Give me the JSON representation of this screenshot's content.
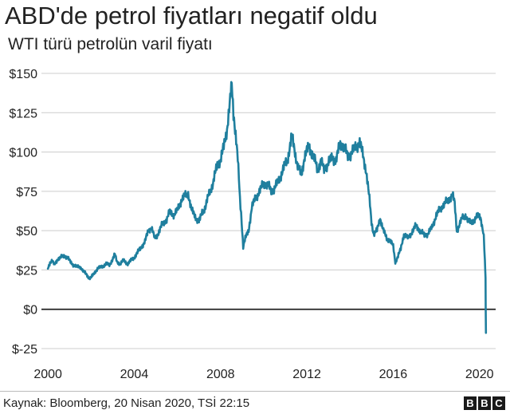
{
  "header": {
    "title": "ABD'de petrol fiyatları negatif oldu",
    "subtitle": "WTI türü petrolün varil fiyatı"
  },
  "footer": {
    "source": "Kaynak: Bloomberg, 20 Nisan 2020, TSİ 22:15",
    "logo": [
      "B",
      "B",
      "C"
    ]
  },
  "colors": {
    "line": "#1f7f9e",
    "zero_line": "#222222",
    "grid": "#cccccc"
  },
  "chart_data": {
    "type": "line",
    "title": "ABD'de petrol fiyatları negatif oldu",
    "subtitle": "WTI türü petrolün varil fiyatı",
    "xlabel": "",
    "ylabel": "",
    "xlim": [
      1999.7,
      2020.75
    ],
    "ylim": [
      -25,
      150
    ],
    "grid": true,
    "legend": "none",
    "x_ticks": [
      2000,
      2004,
      2008,
      2012,
      2016,
      2020
    ],
    "x_tick_labels": [
      "2000",
      "2004",
      "2008",
      "2012",
      "2016",
      "2020"
    ],
    "y_ticks": [
      150,
      125,
      100,
      75,
      50,
      25,
      0,
      -25
    ],
    "y_tick_labels": [
      "$150",
      "$125",
      "$100",
      "$75",
      "$50",
      "$25",
      "$0",
      "$-25"
    ],
    "series": [
      {
        "name": "WTI",
        "x": [
          2000.0,
          2000.1,
          2000.2,
          2000.3,
          2000.45,
          2000.6,
          2000.75,
          2000.9,
          2001.05,
          2001.2,
          2001.35,
          2001.5,
          2001.65,
          2001.8,
          2001.9,
          2002.0,
          2002.15,
          2002.3,
          2002.5,
          2002.7,
          2002.85,
          2003.0,
          2003.1,
          2003.2,
          2003.35,
          2003.5,
          2003.7,
          2003.85,
          2004.0,
          2004.2,
          2004.35,
          2004.5,
          2004.65,
          2004.8,
          2004.95,
          2005.1,
          2005.3,
          2005.5,
          2005.65,
          2005.85,
          2006.0,
          2006.2,
          2006.35,
          2006.5,
          2006.65,
          2006.8,
          2007.0,
          2007.15,
          2007.3,
          2007.5,
          2007.65,
          2007.85,
          2008.0,
          2008.15,
          2008.3,
          2008.45,
          2008.52,
          2008.6,
          2008.7,
          2008.8,
          2008.9,
          2008.98,
          2009.05,
          2009.15,
          2009.3,
          2009.45,
          2009.6,
          2009.8,
          2010.0,
          2010.2,
          2010.35,
          2010.5,
          2010.7,
          2010.9,
          2011.1,
          2011.3,
          2011.45,
          2011.6,
          2011.75,
          2011.9,
          2012.1,
          2012.3,
          2012.5,
          2012.65,
          2012.8,
          2013.0,
          2013.2,
          2013.35,
          2013.55,
          2013.7,
          2013.9,
          2014.1,
          2014.3,
          2014.45,
          2014.6,
          2014.75,
          2014.9,
          2015.0,
          2015.1,
          2015.25,
          2015.4,
          2015.55,
          2015.7,
          2015.85,
          2016.0,
          2016.1,
          2016.2,
          2016.35,
          2016.5,
          2016.7,
          2016.9,
          2017.05,
          2017.25,
          2017.45,
          2017.6,
          2017.8,
          2018.0,
          2018.15,
          2018.3,
          2018.45,
          2018.6,
          2018.75,
          2018.85,
          2018.95,
          2019.05,
          2019.2,
          2019.35,
          2019.5,
          2019.65,
          2019.8,
          2019.95,
          2020.05,
          2020.12,
          2020.2,
          2020.25,
          2020.28,
          2020.3
        ],
        "y": [
          26,
          30,
          31,
          28,
          32,
          33,
          34,
          33,
          30,
          28,
          27,
          27,
          24,
          22,
          20,
          20,
          23,
          26,
          27,
          29,
          28,
          32,
          35,
          30,
          29,
          31,
          29,
          31,
          33,
          37,
          40,
          43,
          50,
          52,
          45,
          48,
          54,
          57,
          62,
          60,
          63,
          70,
          72,
          74,
          63,
          60,
          55,
          62,
          65,
          75,
          80,
          92,
          95,
          103,
          115,
          133,
          145,
          125,
          112,
          95,
          70,
          55,
          40,
          45,
          50,
          65,
          70,
          75,
          80,
          79,
          75,
          77,
          82,
          89,
          95,
          110,
          100,
          90,
          85,
          98,
          103,
          98,
          88,
          95,
          88,
          94,
          96,
          95,
          105,
          104,
          97,
          100,
          104,
          106,
          98,
          88,
          70,
          55,
          48,
          50,
          58,
          50,
          45,
          44,
          40,
          30,
          33,
          38,
          48,
          45,
          50,
          53,
          50,
          47,
          48,
          52,
          60,
          63,
          66,
          68,
          70,
          73,
          67,
          50,
          53,
          58,
          60,
          55,
          56,
          57,
          60,
          59,
          52,
          46,
          30,
          20,
          -15
        ]
      }
    ]
  }
}
